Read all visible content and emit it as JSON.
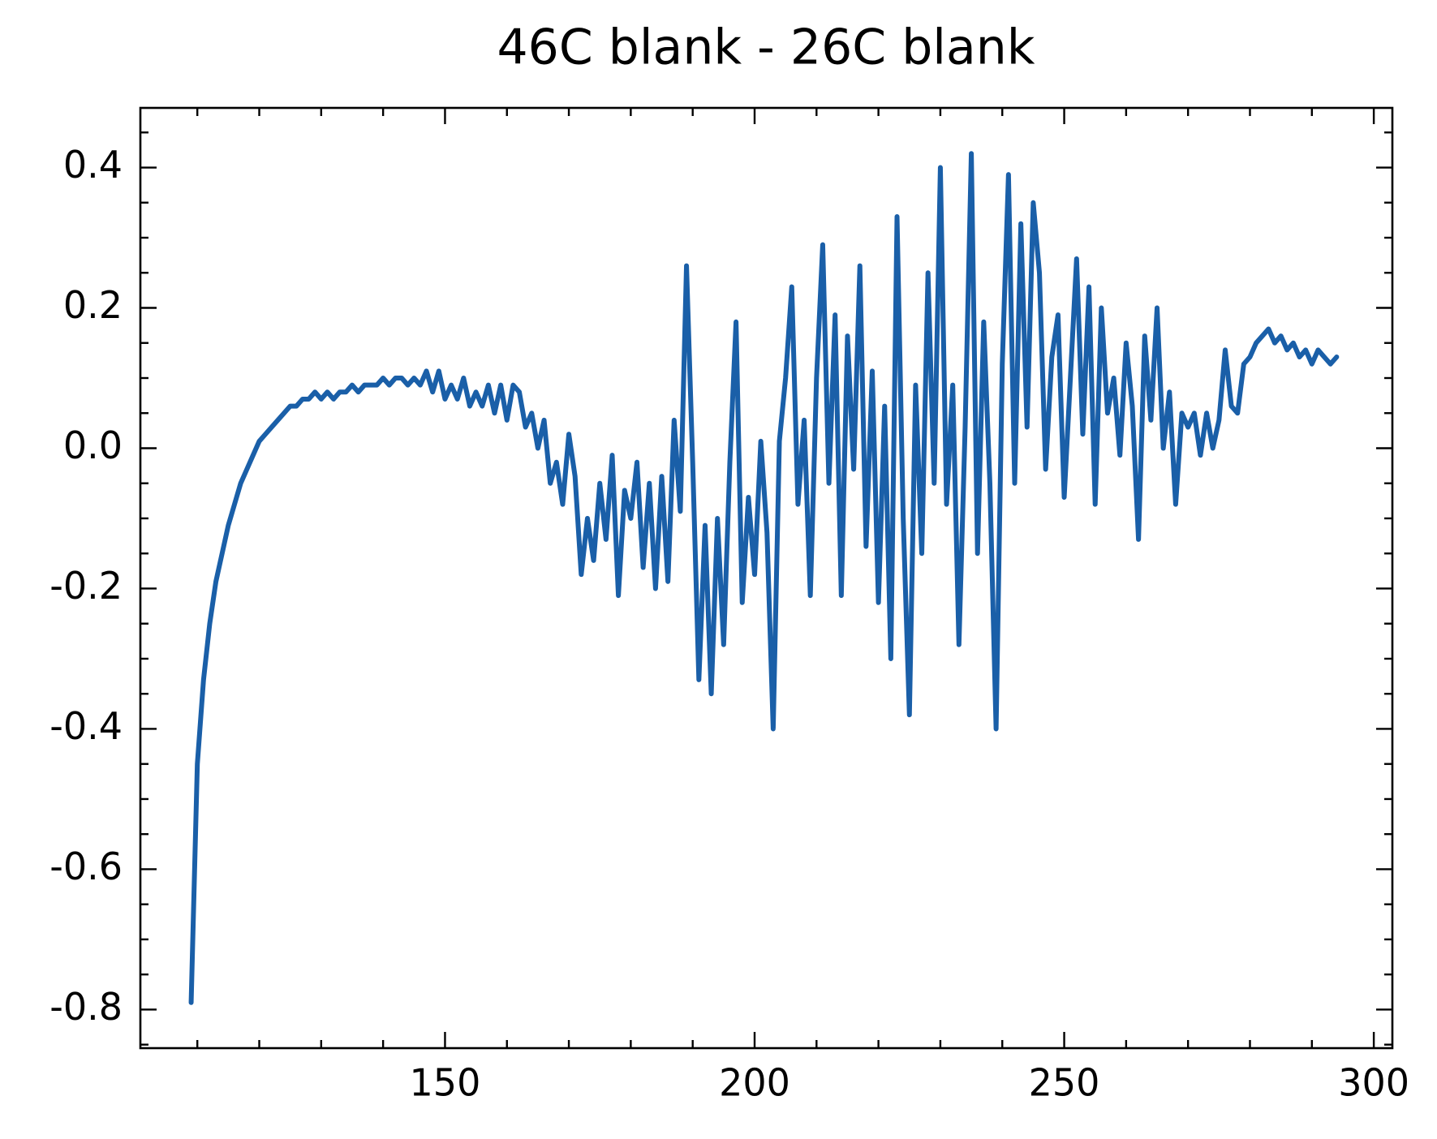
{
  "chart_data": {
    "type": "line",
    "title": "46C blank - 26C blank",
    "x": [
      109,
      110,
      111,
      112,
      113,
      114,
      115,
      116,
      117,
      118,
      119,
      120,
      121,
      122,
      123,
      124,
      125,
      126,
      127,
      128,
      129,
      130,
      131,
      132,
      133,
      134,
      135,
      136,
      137,
      138,
      139,
      140,
      141,
      142,
      143,
      144,
      145,
      146,
      147,
      148,
      149,
      150,
      151,
      152,
      153,
      154,
      155,
      156,
      157,
      158,
      159,
      160,
      161,
      162,
      163,
      164,
      165,
      166,
      167,
      168,
      169,
      170,
      171,
      172,
      173,
      174,
      175,
      176,
      177,
      178,
      179,
      180,
      181,
      182,
      183,
      184,
      185,
      186,
      187,
      188,
      189,
      190,
      191,
      192,
      193,
      194,
      195,
      196,
      197,
      198,
      199,
      200,
      201,
      202,
      203,
      204,
      205,
      206,
      207,
      208,
      209,
      210,
      211,
      212,
      213,
      214,
      215,
      216,
      217,
      218,
      219,
      220,
      221,
      222,
      223,
      224,
      225,
      226,
      227,
      228,
      229,
      230,
      231,
      232,
      233,
      234,
      235,
      236,
      237,
      238,
      239,
      240,
      241,
      242,
      243,
      244,
      245,
      246,
      247,
      248,
      249,
      250,
      251,
      252,
      253,
      254,
      255,
      256,
      257,
      258,
      259,
      260,
      261,
      262,
      263,
      264,
      265,
      266,
      267,
      268,
      269,
      270,
      271,
      272,
      273,
      274,
      275,
      276,
      277,
      278,
      279,
      280,
      281,
      282,
      283,
      284,
      285,
      286,
      287,
      288,
      289,
      290,
      291,
      292,
      293,
      294
    ],
    "values": [
      -0.79,
      -0.45,
      -0.33,
      -0.25,
      -0.19,
      -0.15,
      -0.11,
      -0.08,
      -0.05,
      -0.03,
      -0.01,
      0.01,
      0.02,
      0.03,
      0.04,
      0.05,
      0.06,
      0.06,
      0.07,
      0.07,
      0.08,
      0.07,
      0.08,
      0.07,
      0.08,
      0.08,
      0.09,
      0.08,
      0.09,
      0.09,
      0.09,
      0.1,
      0.09,
      0.1,
      0.1,
      0.09,
      0.1,
      0.09,
      0.11,
      0.08,
      0.11,
      0.07,
      0.09,
      0.07,
      0.1,
      0.06,
      0.08,
      0.06,
      0.09,
      0.05,
      0.09,
      0.04,
      0.09,
      0.08,
      0.03,
      0.05,
      0.0,
      0.04,
      -0.05,
      -0.02,
      -0.08,
      0.02,
      -0.04,
      -0.18,
      -0.1,
      -0.16,
      -0.05,
      -0.13,
      -0.01,
      -0.21,
      -0.06,
      -0.1,
      -0.02,
      -0.17,
      -0.05,
      -0.2,
      -0.04,
      -0.19,
      0.04,
      -0.09,
      0.26,
      -0.02,
      -0.33,
      -0.11,
      -0.35,
      -0.1,
      -0.28,
      -0.02,
      0.18,
      -0.22,
      -0.07,
      -0.18,
      0.01,
      -0.12,
      -0.4,
      0.01,
      0.1,
      0.23,
      -0.08,
      0.04,
      -0.21,
      0.1,
      0.29,
      -0.05,
      0.19,
      -0.21,
      0.16,
      -0.03,
      0.26,
      -0.14,
      0.11,
      -0.22,
      0.06,
      -0.3,
      0.33,
      -0.1,
      -0.38,
      0.09,
      -0.15,
      0.25,
      -0.05,
      0.4,
      -0.08,
      0.09,
      -0.28,
      0.03,
      0.42,
      -0.15,
      0.18,
      -0.05,
      -0.4,
      0.12,
      0.39,
      -0.05,
      0.32,
      0.03,
      0.35,
      0.25,
      -0.03,
      0.13,
      0.19,
      -0.07,
      0.1,
      0.27,
      0.02,
      0.23,
      -0.08,
      0.2,
      0.05,
      0.1,
      -0.01,
      0.15,
      0.06,
      -0.13,
      0.16,
      0.04,
      0.2,
      0.0,
      0.08,
      -0.08,
      0.05,
      0.03,
      0.05,
      -0.01,
      0.05,
      0.0,
      0.04,
      0.14,
      0.06,
      0.05,
      0.12,
      0.13,
      0.15,
      0.16,
      0.17,
      0.15,
      0.16,
      0.14,
      0.15,
      0.13,
      0.14,
      0.12,
      0.14,
      0.13,
      0.12,
      0.13
    ],
    "color": "#1a5fa8",
    "xlim": [
      100.8,
      303
    ],
    "ylim": [
      -0.855,
      0.485
    ],
    "xticks": [
      150,
      200,
      250,
      300
    ],
    "yticks": [
      -0.8,
      -0.6,
      -0.4,
      -0.2,
      {
        "value": 0,
        "label": "0.0"
      },
      0.2,
      0.4
    ],
    "xminorticks": [
      110,
      120,
      130,
      140,
      160,
      170,
      180,
      190,
      210,
      220,
      230,
      240,
      260,
      270,
      280,
      290
    ],
    "yminorticks": [
      -0.85,
      -0.75,
      -0.7,
      -0.65,
      -0.55,
      -0.5,
      -0.45,
      -0.35,
      -0.3,
      -0.25,
      -0.15,
      -0.1,
      -0.05,
      0.05,
      0.1,
      0.15,
      0.25,
      0.3,
      0.35,
      0.45
    ]
  }
}
